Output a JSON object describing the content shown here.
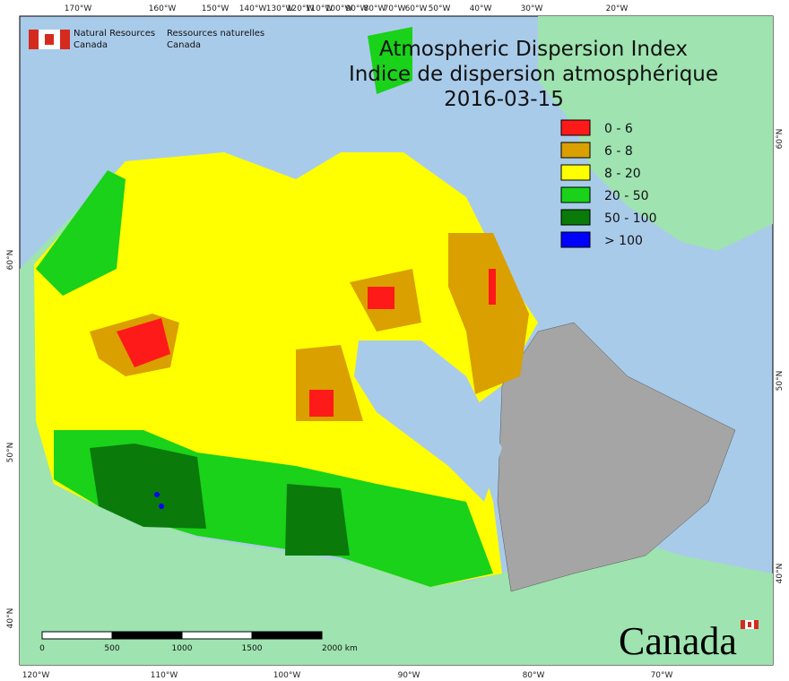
{
  "header": {
    "title_lines": [
      "Atmospheric Dispersion Index",
      "Indice de dispersion atmosphérique"
    ],
    "date": "2016-03-15"
  },
  "agency": {
    "english": [
      "Natural Resources",
      "Canada"
    ],
    "french": [
      "Ressources naturelles",
      "Canada"
    ]
  },
  "wordmark": "Canada",
  "legend": [
    {
      "label": "0 - 6",
      "color": "#ff1a1a"
    },
    {
      "label": "6 - 8",
      "color": "#d9a000"
    },
    {
      "label": "8 - 20",
      "color": "#ffff00"
    },
    {
      "label": "20 - 50",
      "color": "#19d219"
    },
    {
      "label": "50 - 100",
      "color": "#0a7a0a"
    },
    {
      "label": "> 100",
      "color": "#0000ff"
    }
  ],
  "graticule": {
    "top": [
      "170°W",
      "160°W",
      "150°W",
      "140°W",
      "130°W",
      "120°W",
      "110°W",
      "100°W",
      "90°W",
      "80°W",
      "70°W",
      "60°W",
      "50°W",
      "40°W",
      "30°W",
      "20°W"
    ],
    "bottom": [
      "120°W",
      "110°W",
      "100°W",
      "90°W",
      "80°W",
      "70°W"
    ],
    "left": [
      "60°N",
      "50°N",
      "40°N"
    ],
    "right": [
      "60°N",
      "50°N",
      "40°N"
    ]
  },
  "scale_bar": [
    "0",
    "500",
    "1000",
    "1500",
    "2000 km"
  ]
}
